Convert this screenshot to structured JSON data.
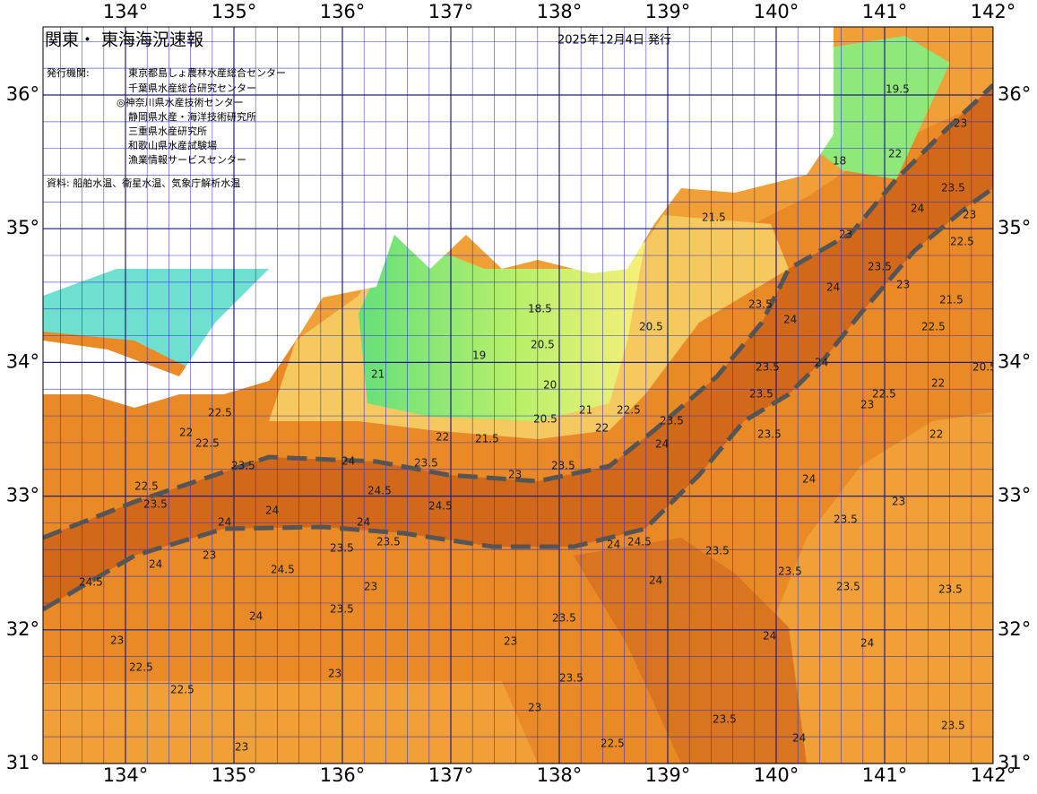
{
  "header": {
    "title": "関東・ 東海海況速報",
    "date": "2025年12月4日 発行"
  },
  "agencies": {
    "label": "発行機関:",
    "items": [
      "東京都島しょ農林水産総合センター",
      "千葉県水産総合研究センター",
      "◎神奈川県水産技術センター",
      "静岡県水産・海洋技術研究所",
      "三重県水産研究所",
      "和歌山県水産試験場",
      "漁業情報サービスセンター"
    ]
  },
  "source": "資料: 船舶水温、衛星水温、気象庁解析水温",
  "axes": {
    "lon_ticks": [
      {
        "value": 134,
        "label": "134°"
      },
      {
        "value": 135,
        "label": "135°"
      },
      {
        "value": 136,
        "label": "136°"
      },
      {
        "value": 137,
        "label": "137°"
      },
      {
        "value": 138,
        "label": "138°"
      },
      {
        "value": 139,
        "label": "139°"
      },
      {
        "value": 140,
        "label": "140°"
      },
      {
        "value": 141,
        "label": "141°"
      },
      {
        "value": 142,
        "label": "142°"
      }
    ],
    "lat_ticks": [
      {
        "value": 31,
        "label": "31°"
      },
      {
        "value": 32,
        "label": "32°"
      },
      {
        "value": 33,
        "label": "33°"
      },
      {
        "value": 34,
        "label": "34°"
      },
      {
        "value": 35,
        "label": "35°"
      },
      {
        "value": 36,
        "label": "36°"
      }
    ]
  },
  "contour_labels": [
    22.5,
    22,
    22.5,
    23.5,
    22.5,
    23.5,
    24,
    24,
    24,
    23.5,
    24.5,
    24.5,
    24,
    23.5,
    23.5,
    24.5,
    24.5,
    24,
    23,
    23,
    23.5,
    24,
    23,
    22.5,
    22.5,
    23,
    23,
    23.5,
    23.5,
    23,
    22.5,
    23,
    24,
    24.5,
    24,
    23.5,
    23.5,
    23.5,
    24,
    24,
    23.5,
    24,
    23.5,
    23.5,
    23,
    23.5,
    24,
    23.5,
    23.5,
    24,
    23.5,
    23,
    22,
    21.5,
    21,
    19,
    20.5,
    18.5,
    20.5,
    21,
    20,
    22.5,
    22,
    20.5,
    21.5,
    23,
    23.5,
    24,
    24,
    23.5,
    23.5,
    24,
    23.5,
    24,
    23.5,
    23,
    22.5,
    23,
    21.5,
    22,
    23,
    20.5,
    22,
    22.5,
    23,
    18,
    19.5,
    22.5,
    22
  ]
}
